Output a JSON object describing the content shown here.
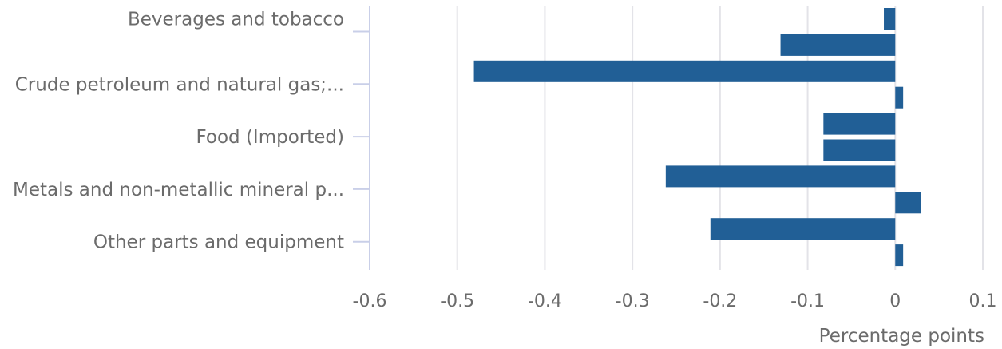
{
  "chart_data": {
    "type": "bar",
    "orientation": "horizontal",
    "title": "",
    "xlabel": "Percentage points",
    "ylabel": "",
    "xlim": [
      -0.6,
      0.1
    ],
    "x_ticks": [
      -0.6,
      -0.5,
      -0.4,
      -0.3,
      -0.2,
      -0.1,
      0,
      0.1
    ],
    "x_tick_labels": [
      "-0.6",
      "-0.5",
      "-0.4",
      "-0.3",
      "-0.2",
      "-0.1",
      "0",
      "0.1"
    ],
    "grid": true,
    "legend": "none",
    "bar_color": "#215f96",
    "categories": [
      "Beverages and tobacco",
      "",
      "Crude petroleum and natural gas;...",
      "",
      "Food (Imported)",
      "",
      "Metals and non-metallic mineral p...",
      "",
      "Other parts and equipment",
      ""
    ],
    "values": [
      -0.013,
      -0.131,
      -0.481,
      0.009,
      -0.082,
      -0.082,
      -0.262,
      0.029,
      -0.211,
      0.009
    ]
  }
}
